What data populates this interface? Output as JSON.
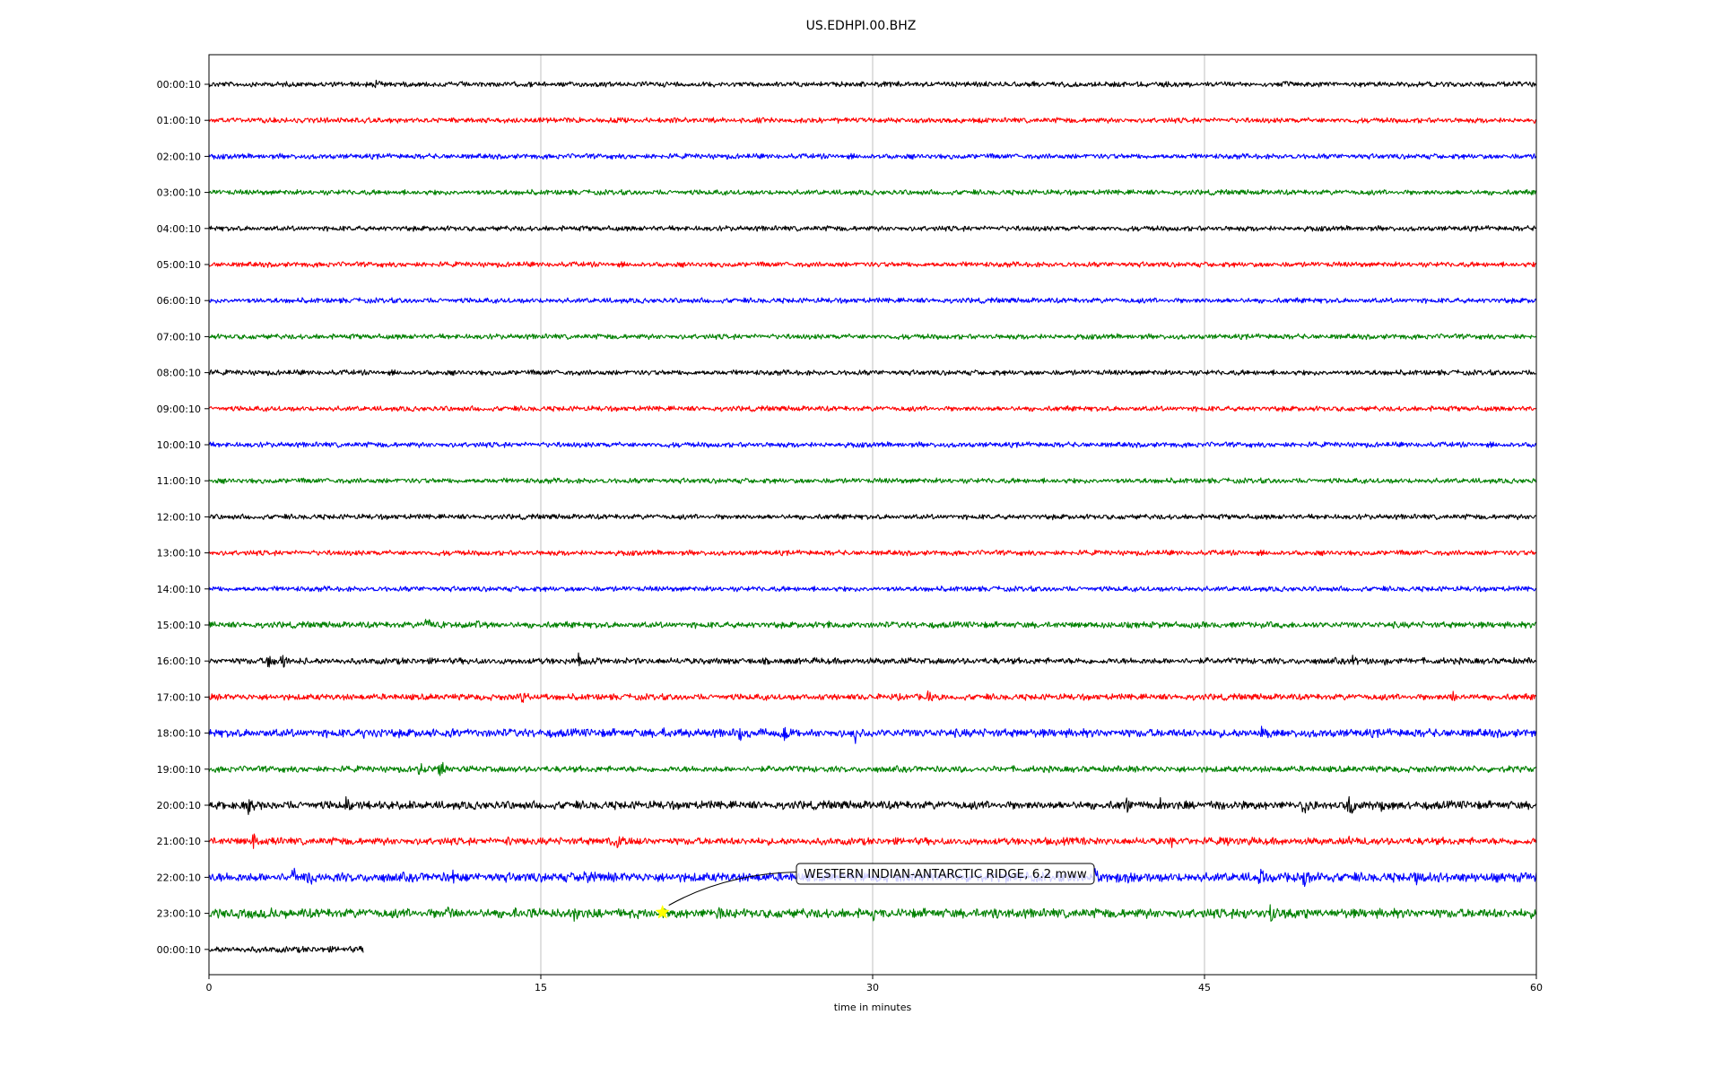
{
  "chart_data": {
    "type": "line",
    "title": "US.EDHPI.00.BHZ",
    "xlabel": "time in minutes",
    "ylabel": "",
    "xlim": [
      0,
      60
    ],
    "xticks": [
      0,
      15,
      30,
      45,
      60
    ],
    "grid": "vertical",
    "rows": [
      "00:00:10",
      "01:00:10",
      "02:00:10",
      "03:00:10",
      "04:00:10",
      "05:00:10",
      "06:00:10",
      "07:00:10",
      "08:00:10",
      "09:00:10",
      "10:00:10",
      "11:00:10",
      "12:00:10",
      "13:00:10",
      "14:00:10",
      "15:00:10",
      "16:00:10",
      "17:00:10",
      "18:00:10",
      "19:00:10",
      "20:00:10",
      "21:00:10",
      "22:00:10",
      "23:00:10",
      "00:00:10"
    ],
    "row_colors": [
      "#000000",
      "#ff0000",
      "#0000ff",
      "#008000"
    ],
    "last_row_end_minutes": 7,
    "noise_level": [
      1,
      1,
      1,
      1,
      1,
      1,
      1,
      1,
      1,
      1,
      1,
      1,
      1,
      1,
      1,
      1.2,
      1.2,
      1.2,
      1.6,
      1.2,
      1.6,
      1.4,
      1.8,
      1.8,
      1.2
    ],
    "bursts": [
      {
        "row": 0,
        "minute": 7.5,
        "amp": 8
      },
      {
        "row": 15,
        "minute": 9.8,
        "amp": 14
      },
      {
        "row": 15,
        "minute": 11.2,
        "amp": 12
      },
      {
        "row": 15,
        "minute": 12.0,
        "amp": 16
      },
      {
        "row": 15,
        "minute": 28.0,
        "amp": 7
      },
      {
        "row": 16,
        "minute": 2.7,
        "amp": 12
      },
      {
        "row": 16,
        "minute": 3.3,
        "amp": 14
      },
      {
        "row": 16,
        "minute": 16.7,
        "amp": 10
      },
      {
        "row": 16,
        "minute": 51.7,
        "amp": 10
      },
      {
        "row": 16,
        "minute": 53.2,
        "amp": 8
      },
      {
        "row": 17,
        "minute": 14.1,
        "amp": 12
      },
      {
        "row": 17,
        "minute": 27.0,
        "amp": 7
      },
      {
        "row": 17,
        "minute": 32.5,
        "amp": 9
      },
      {
        "row": 17,
        "minute": 56.2,
        "amp": 10
      },
      {
        "row": 18,
        "minute": 7.0,
        "amp": 7
      },
      {
        "row": 18,
        "minute": 10.5,
        "amp": 8
      },
      {
        "row": 18,
        "minute": 20.5,
        "amp": 9
      },
      {
        "row": 18,
        "minute": 24.0,
        "amp": 12
      },
      {
        "row": 18,
        "minute": 26.0,
        "amp": 12
      },
      {
        "row": 18,
        "minute": 29.2,
        "amp": 14
      },
      {
        "row": 18,
        "minute": 47.5,
        "amp": 14
      },
      {
        "row": 19,
        "minute": 9.5,
        "amp": 12
      },
      {
        "row": 19,
        "minute": 10.4,
        "amp": 16
      },
      {
        "row": 20,
        "minute": 1.8,
        "amp": 14
      },
      {
        "row": 20,
        "minute": 6.2,
        "amp": 12
      },
      {
        "row": 20,
        "minute": 8.5,
        "amp": 8
      },
      {
        "row": 20,
        "minute": 41.5,
        "amp": 12
      },
      {
        "row": 20,
        "minute": 43.0,
        "amp": 12
      },
      {
        "row": 20,
        "minute": 45.5,
        "amp": 12
      },
      {
        "row": 20,
        "minute": 49.5,
        "amp": 20
      },
      {
        "row": 20,
        "minute": 51.5,
        "amp": 20
      },
      {
        "row": 20,
        "minute": 53.0,
        "amp": 10
      },
      {
        "row": 21,
        "minute": 2.0,
        "amp": 14
      },
      {
        "row": 21,
        "minute": 13.5,
        "amp": 10
      },
      {
        "row": 21,
        "minute": 18.0,
        "amp": 18
      },
      {
        "row": 21,
        "minute": 18.5,
        "amp": 14
      },
      {
        "row": 21,
        "minute": 39.5,
        "amp": 10
      },
      {
        "row": 21,
        "minute": 43.5,
        "amp": 10
      },
      {
        "row": 21,
        "minute": 46.0,
        "amp": 12
      },
      {
        "row": 21,
        "minute": 51.5,
        "amp": 10
      },
      {
        "row": 22,
        "minute": 3.8,
        "amp": 16
      },
      {
        "row": 22,
        "minute": 4.5,
        "amp": 16
      },
      {
        "row": 22,
        "minute": 11.0,
        "amp": 12
      },
      {
        "row": 22,
        "minute": 17.0,
        "amp": 12
      },
      {
        "row": 22,
        "minute": 36.0,
        "amp": 10
      },
      {
        "row": 22,
        "minute": 40.0,
        "amp": 14
      },
      {
        "row": 22,
        "minute": 41.5,
        "amp": 12
      },
      {
        "row": 22,
        "minute": 47.5,
        "amp": 20
      },
      {
        "row": 22,
        "minute": 49.5,
        "amp": 18
      },
      {
        "row": 22,
        "minute": 54.5,
        "amp": 16
      },
      {
        "row": 22,
        "minute": 60.0,
        "amp": 12
      },
      {
        "row": 23,
        "minute": 2.8,
        "amp": 10
      },
      {
        "row": 23,
        "minute": 10.8,
        "amp": 16
      },
      {
        "row": 23,
        "minute": 13.8,
        "amp": 12
      },
      {
        "row": 23,
        "minute": 16.5,
        "amp": 14
      },
      {
        "row": 23,
        "minute": 23.0,
        "amp": 12
      },
      {
        "row": 23,
        "minute": 30.0,
        "amp": 10
      },
      {
        "row": 23,
        "minute": 35.5,
        "amp": 12
      },
      {
        "row": 23,
        "minute": 46.8,
        "amp": 14
      },
      {
        "row": 23,
        "minute": 48.0,
        "amp": 18
      },
      {
        "row": 23,
        "minute": 49.5,
        "amp": 14
      }
    ],
    "event": {
      "label": "WESTERN INDIAN-ANTARCTIC RIDGE, 6.2 mww",
      "row": 23,
      "minute": 20.5,
      "marker_color": "#ffff00"
    }
  }
}
